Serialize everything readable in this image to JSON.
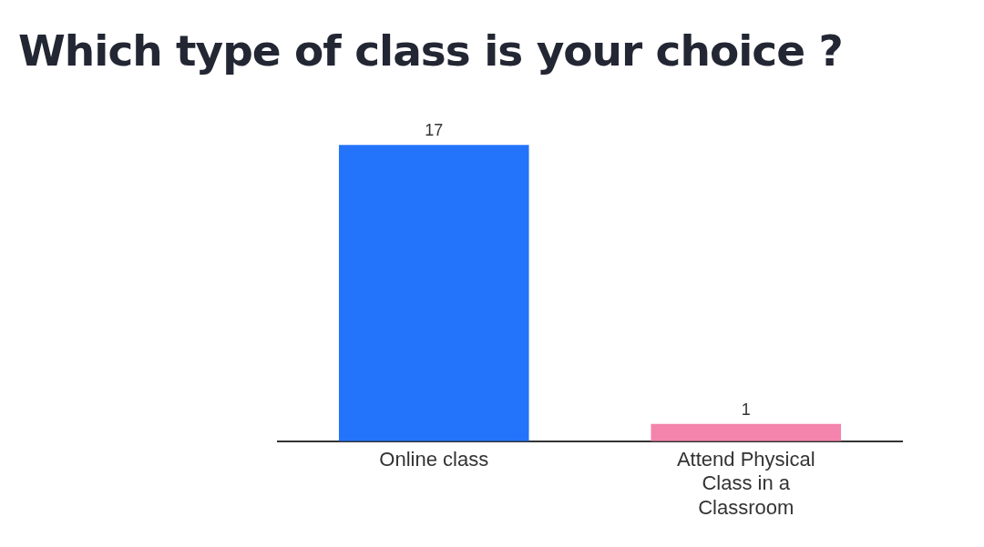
{
  "chart_data": {
    "type": "bar",
    "title": "Which type of class is your choice ?",
    "categories": [
      "Online class",
      "Attend Physical Class in a Classroom"
    ],
    "values": [
      17,
      1
    ],
    "colors": [
      "#2473fb",
      "#f484ac"
    ],
    "data_labels": true,
    "grid": false,
    "legend": false
  }
}
